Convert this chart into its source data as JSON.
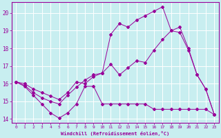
{
  "xlabel": "Windchill (Refroidissement éolien,°C)",
  "bg_color": "#c8eef0",
  "line_color": "#990099",
  "grid_color": "#ffffff",
  "xlim": [
    -0.5,
    23.5
  ],
  "ylim": [
    13.8,
    20.6
  ],
  "xticks": [
    0,
    1,
    2,
    3,
    4,
    5,
    6,
    7,
    8,
    9,
    10,
    11,
    12,
    13,
    14,
    15,
    16,
    17,
    18,
    19,
    20,
    21,
    22,
    23
  ],
  "yticks": [
    14,
    15,
    16,
    17,
    18,
    19,
    20
  ],
  "line1_x": [
    0,
    1,
    2,
    3,
    4,
    5,
    6,
    7,
    8,
    9,
    10,
    11,
    12,
    13,
    14,
    15,
    16,
    17,
    18,
    19,
    20,
    21,
    22,
    23
  ],
  "line1_y": [
    16.1,
    15.85,
    15.35,
    14.85,
    14.35,
    14.05,
    14.35,
    14.85,
    15.85,
    15.85,
    14.85,
    14.85,
    14.85,
    14.85,
    14.85,
    14.85,
    14.55,
    14.55,
    14.55,
    14.55,
    14.55,
    14.55,
    14.55,
    14.25
  ],
  "line2_x": [
    0,
    1,
    2,
    3,
    4,
    5,
    6,
    7,
    8,
    9,
    10,
    11,
    12,
    13,
    14,
    15,
    16,
    17,
    18,
    19,
    20,
    21,
    22,
    23
  ],
  "line2_y": [
    16.1,
    15.9,
    15.5,
    15.2,
    15.0,
    14.85,
    15.35,
    15.8,
    16.2,
    16.5,
    16.6,
    17.1,
    16.5,
    16.9,
    17.3,
    17.2,
    17.9,
    18.5,
    19.0,
    18.9,
    17.9,
    16.5,
    15.7,
    14.25
  ],
  "line3_x": [
    0,
    1,
    2,
    3,
    4,
    5,
    6,
    7,
    8,
    9,
    10,
    11,
    12,
    13,
    14,
    15,
    16,
    17,
    18,
    19,
    20,
    21,
    22,
    23
  ],
  "line3_y": [
    16.1,
    16.0,
    15.7,
    15.5,
    15.3,
    15.1,
    15.5,
    16.1,
    16.0,
    16.4,
    16.6,
    18.8,
    19.4,
    19.2,
    19.6,
    19.85,
    20.1,
    20.35,
    19.0,
    19.2,
    18.0,
    16.5,
    15.7,
    14.25
  ]
}
